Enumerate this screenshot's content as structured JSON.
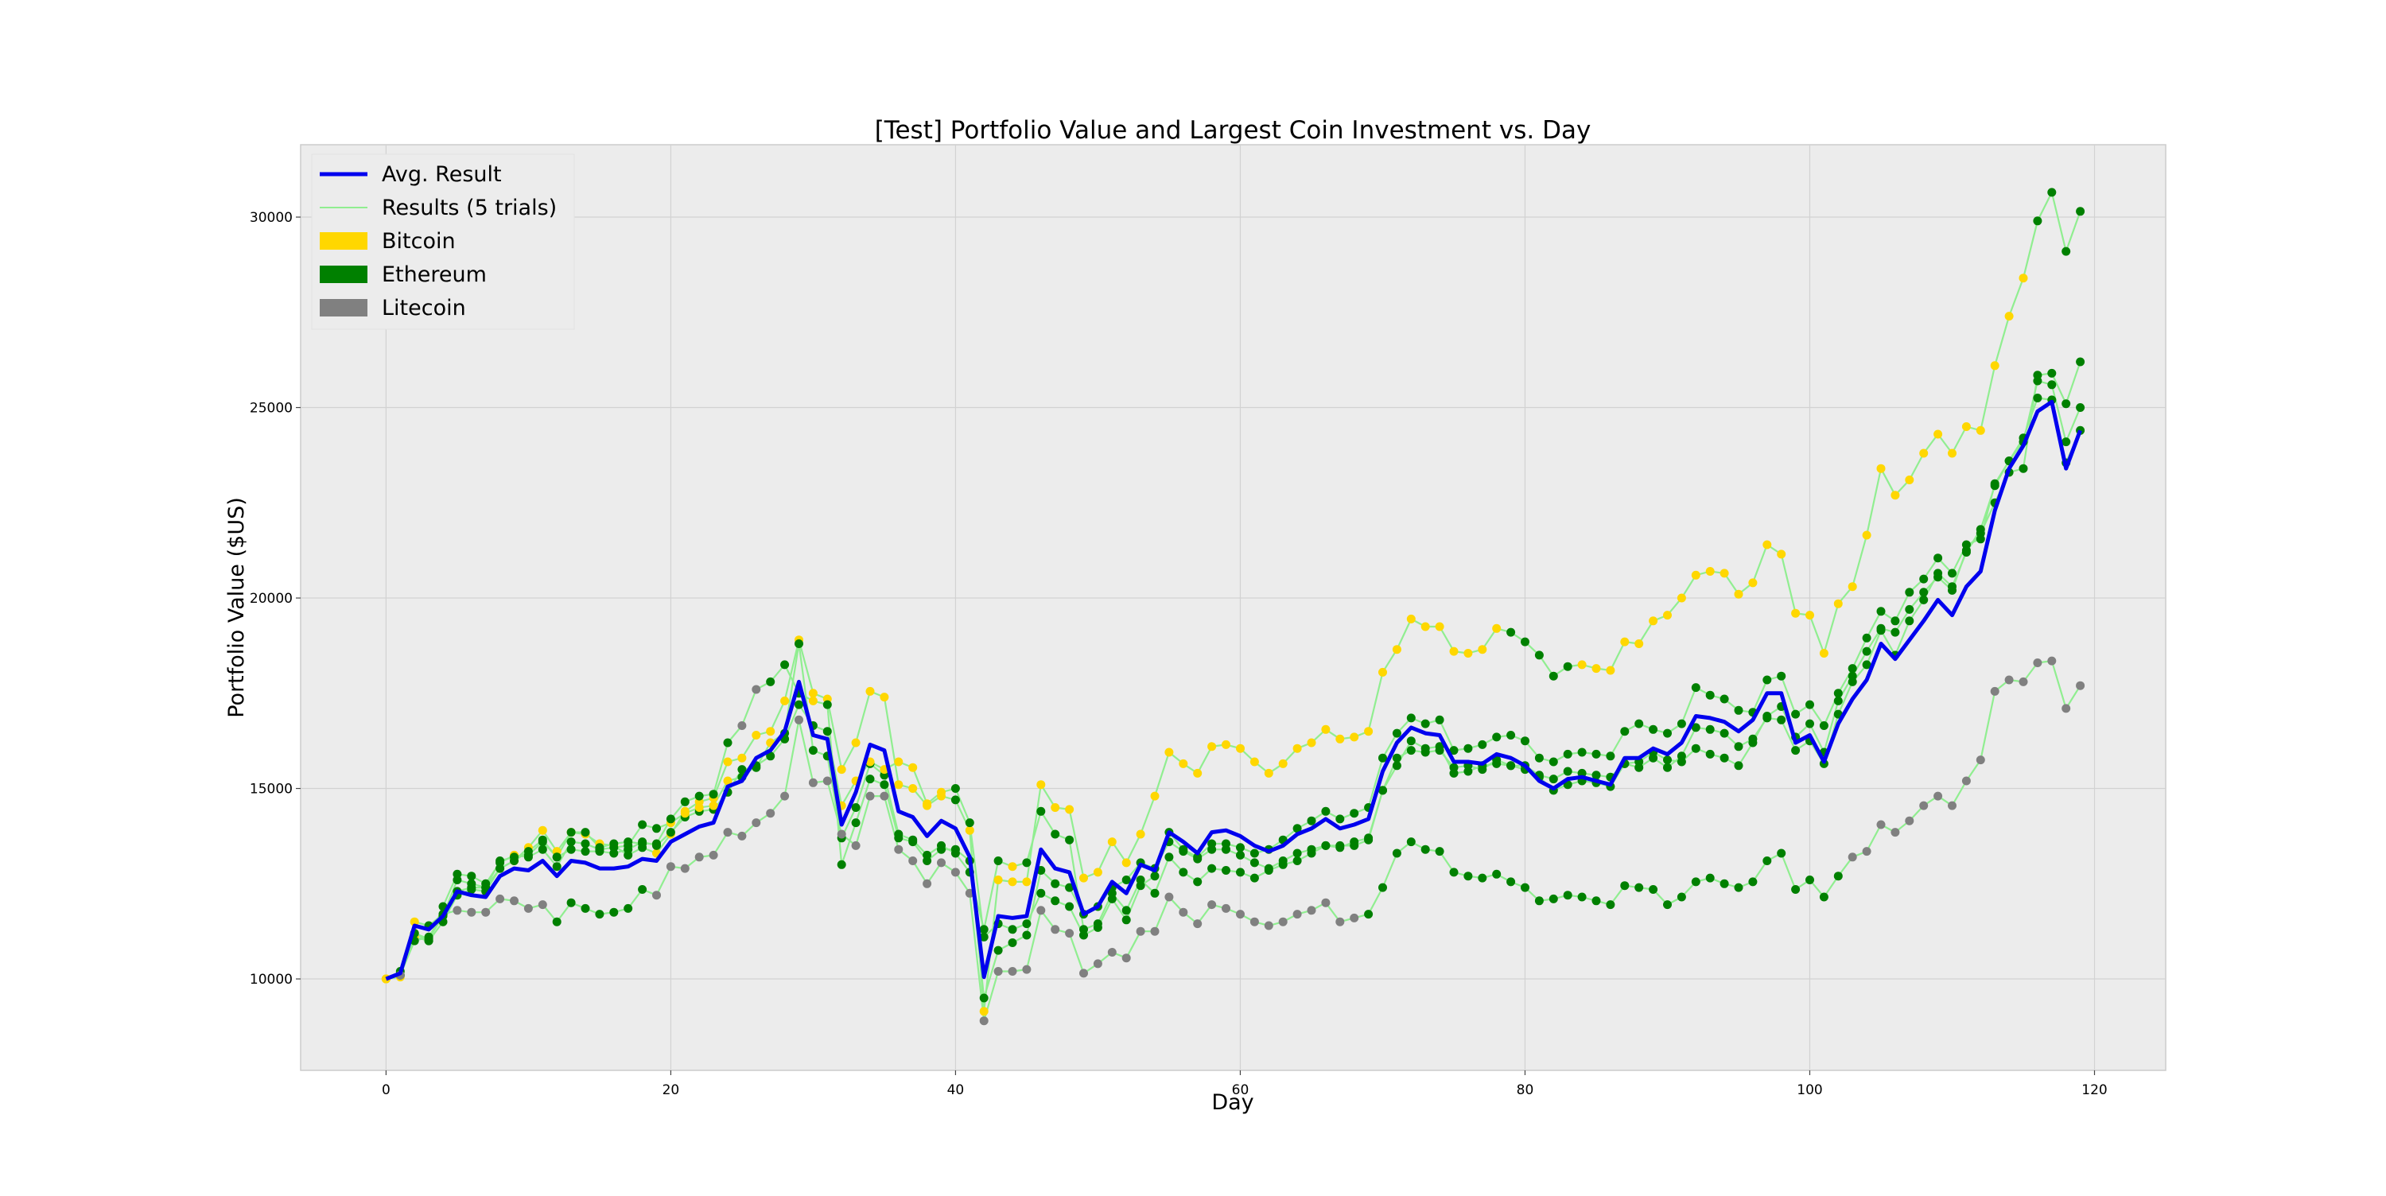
{
  "chart_data": {
    "type": "line",
    "title": "[Test] Portfolio Value and Largest Coin Investment vs. Day",
    "xlabel": "Day",
    "ylabel": "Portfolio Value ($US)",
    "xlim": [
      -6,
      125
    ],
    "ylim": [
      7600,
      31900
    ],
    "xticks": [
      0,
      20,
      40,
      60,
      80,
      100,
      120
    ],
    "yticks": [
      10000,
      15000,
      20000,
      25000,
      30000
    ],
    "grid": true,
    "legend_position": "top-left",
    "legend": [
      {
        "label": "Avg. Result",
        "kind": "line",
        "color": "#0000ee",
        "width": 5
      },
      {
        "label": "Results (5 trials)",
        "kind": "line",
        "color": "#90ee90",
        "width": 2
      },
      {
        "label": "Bitcoin",
        "kind": "patch",
        "color": "#ffd700"
      },
      {
        "label": "Ethereum",
        "kind": "patch",
        "color": "#008000"
      },
      {
        "label": "Litecoin",
        "kind": "patch",
        "color": "#808080"
      }
    ],
    "coin_colors": {
      "B": "#ffd700",
      "E": "#008000",
      "L": "#808080"
    },
    "avg_series": {
      "name": "Avg. Result",
      "color": "#0000ee",
      "x_start": 0,
      "values": [
        10000,
        10150,
        11400,
        11300,
        11650,
        12300,
        12200,
        12150,
        12700,
        12900,
        12850,
        13100,
        12700,
        13100,
        13050,
        12900,
        12900,
        12950,
        13150,
        13100,
        13600,
        13800,
        14000,
        14100,
        15050,
        15200,
        15800,
        16000,
        16500,
        17800,
        16400,
        16300,
        14050,
        14900,
        16150,
        16000,
        14400,
        14250,
        13750,
        14150,
        13950,
        13200,
        10050,
        11650,
        11600,
        11650,
        13400,
        12900,
        12800,
        11700,
        11900,
        12550,
        12250,
        13000,
        12850,
        13850,
        13600,
        13300,
        13850,
        13900,
        13750,
        13500,
        13350,
        13500,
        13800,
        13950,
        14200,
        13950,
        14050,
        14200,
        15450,
        16200,
        16600,
        16450,
        16400,
        15700,
        15700,
        15650,
        15900,
        15800,
        15600,
        15200,
        15000,
        15250,
        15300,
        15200,
        15100,
        15800,
        15800,
        16050,
        15900,
        16200,
        16900,
        16850,
        16750,
        16500,
        16800,
        17500,
        17500,
        16200,
        16400,
        15700,
        16700,
        17350,
        17850,
        18800,
        18400,
        18900,
        19400,
        19950,
        19550,
        20300,
        20700,
        22300,
        23400,
        24000,
        24900,
        25150,
        23400,
        24400
      ]
    },
    "trials": [
      {
        "name": "trial-1",
        "x_start": 0,
        "values": [
          10000,
          10050,
          11500,
          11400,
          11700,
          12300,
          12400,
          12400,
          12900,
          13100,
          13450,
          13900,
          13350,
          13850,
          13800,
          13550,
          13500,
          13250,
          13450,
          13300,
          13800,
          14400,
          14650,
          14750,
          15700,
          15800,
          16400,
          16500,
          17300,
          18900,
          17500,
          17350,
          15500,
          16200,
          17550,
          17400,
          15100,
          15000,
          14550,
          14800,
          14700,
          13900,
          9150,
          12600,
          12550,
          12550,
          15100,
          14500,
          14450,
          12650,
          12800,
          13600,
          13050,
          13800,
          14800,
          15950,
          15650,
          15400,
          16100,
          16150,
          16050,
          15700,
          15400,
          15650,
          16050,
          16200,
          16550,
          16300,
          16350,
          16500,
          18050,
          18650,
          19450,
          19250,
          19250,
          18600,
          18550,
          18650,
          19200,
          19100,
          18850,
          18500,
          17950,
          18200,
          18250,
          18150,
          18100,
          18850,
          18800,
          19400,
          19550,
          20000,
          20600,
          20700,
          20650,
          20100,
          20400,
          21400,
          21150,
          19600,
          19550,
          18550,
          19850,
          20300,
          21650,
          23400,
          22700,
          23100,
          23800,
          24300,
          23800,
          24500,
          24400,
          26100,
          27400,
          28400,
          29900,
          30650,
          29100,
          30150
        ],
        "coins": "BBBEEEEEEBBBBBBBBEEBBBBBBBBBBBBBBBBBBBBBEBBBBBBBBBBBBBBBBBBBBBBBBBBBBBBBBBBBBBBEEEEEBBBBBBBBBBBBBBBBBBBBBBBBBBBBBBBB"
      },
      {
        "name": "trial-2",
        "x_start": 0,
        "values": [
          10000,
          10100,
          11200,
          11000,
          11500,
          12200,
          12350,
          12300,
          12900,
          13100,
          13350,
          13650,
          13200,
          13400,
          13350,
          13350,
          13300,
          13400,
          13600,
          13500,
          13850,
          14250,
          14400,
          14450,
          14900,
          15500,
          15550,
          16200,
          16450,
          18800,
          16000,
          15850,
          13700,
          14500,
          15650,
          15350,
          13800,
          13650,
          13250,
          13500,
          13300,
          12800,
          11300,
          13100,
          12950,
          13050,
          14400,
          13800,
          13650,
          11300,
          11450,
          12250,
          11800,
          12600,
          12250,
          13200,
          12800,
          12550,
          12900,
          12850,
          12800,
          12650,
          12850,
          13000,
          13100,
          13300,
          13500,
          13450,
          13600,
          13700,
          14950,
          15600,
          16250,
          16050,
          16100,
          15400,
          15450,
          15600,
          15650,
          15600,
          15500,
          15300,
          14950,
          15100,
          15200,
          15150,
          15050,
          15650,
          15700,
          15950,
          15750,
          15700,
          16050,
          15900,
          15800,
          15600,
          16200,
          16900,
          17150,
          16350,
          16700,
          15950,
          17300,
          17950,
          18600,
          19200,
          19100,
          19700,
          20150,
          20550,
          20200,
          21250,
          21700,
          22500,
          23300,
          23400,
          25850,
          25900,
          25100,
          26200
        ],
        "coins": "BEBEEEEEEEEEEEEEEEEEEEEEEEEBEEEEEEEEEEEEEEEEBEEEEEEEEEEEEEEEEEEEEEEEEEEEEEEEEEEEEEEEEEEEEEEEEEEEEEEEEEEEEEEEEEEEEEEEEE"
      },
      {
        "name": "trial-3",
        "x_start": 0,
        "values": [
          10000,
          10100,
          11100,
          11000,
          11900,
          12750,
          12700,
          12500,
          13050,
          13250,
          13200,
          13400,
          12950,
          13600,
          13550,
          13400,
          13450,
          13500,
          14050,
          13950,
          14100,
          14350,
          14500,
          14550,
          15200,
          15300,
          15600,
          15850,
          16300,
          17200,
          16650,
          16500,
          14550,
          15200,
          15700,
          15500,
          15700,
          15550,
          14600,
          14900,
          15000,
          14100,
          11100,
          11450,
          11300,
          11450,
          12250,
          12050,
          11900,
          11150,
          11350,
          12100,
          11550,
          12450,
          12700,
          13850,
          13400,
          13200,
          13550,
          13550,
          13450,
          13300,
          13400,
          13650,
          13950,
          14150,
          14400,
          14200,
          14350,
          14500,
          15800,
          16450,
          16850,
          16700,
          16800,
          16000,
          16050,
          16150,
          16350,
          16400,
          16250,
          15800,
          15700,
          15900,
          15950,
          15900,
          15850,
          16500,
          16700,
          16550,
          16450,
          16700,
          17650,
          17450,
          17350,
          17050,
          17000,
          17850,
          17950,
          16950,
          17200,
          16650,
          17500,
          18150,
          18950,
          19650,
          19400,
          20150,
          20500,
          21050,
          20650,
          21400,
          21550,
          23000,
          23600,
          24100,
          25700,
          25600,
          24100,
          25000
        ],
        "coins": "BEBEEEEEEBEEEEEEEEEEBBBBBEEEEEEEBBBBBBBBEEEEEEEEEEEEEEEEEEEEEEEEEEEEEEEEEEEEEEEEEEEEEEEEEEEEEEEEEEEEEEEEEEEEEEEEEEEEEEE"
      },
      {
        "name": "trial-4",
        "x_start": 0,
        "values": [
          10000,
          10200,
          11200,
          11050,
          11650,
          12600,
          12500,
          12400,
          13100,
          13200,
          13250,
          13600,
          13200,
          13850,
          13850,
          13450,
          13550,
          13600,
          13550,
          13550,
          14200,
          14650,
          14800,
          14850,
          16200,
          16650,
          17600,
          17800,
          18250,
          17500,
          17300,
          17200,
          13000,
          14100,
          15250,
          15100,
          13700,
          13600,
          13100,
          13400,
          13400,
          13100,
          9500,
          10750,
          10950,
          11150,
          12850,
          12500,
          12400,
          11700,
          11900,
          12400,
          12600,
          13050,
          12900,
          13600,
          13350,
          13150,
          13400,
          13400,
          13250,
          13050,
          12900,
          13100,
          13300,
          13400,
          13500,
          13500,
          13500,
          13650,
          14950,
          15800,
          16000,
          15950,
          16000,
          15550,
          15600,
          15500,
          15750,
          15600,
          15600,
          15350,
          15250,
          15450,
          15400,
          15350,
          15300,
          15650,
          15550,
          15800,
          15550,
          15850,
          16600,
          16550,
          16450,
          16100,
          16300,
          16850,
          16800,
          16000,
          16250,
          15650,
          16950,
          17800,
          18250,
          19150,
          18500,
          19400,
          19950,
          20650,
          20300,
          21200,
          21800,
          22950,
          23600,
          24200,
          25250,
          25200,
          23550,
          24400
        ],
        "coins": "BEEEEEEEEEEEEEEEEEEEEEEEELLEEEBEEEEEEEEEEEEEEEEEEEEEEEEEEEEEEEEEEEEEEEEEEEEEEEEEEEEEEEEEEEEEEEEEEEEEEEEEEEEEEEEEEEEEEEEE"
      },
      {
        "name": "trial-5",
        "x_start": 0,
        "values": [
          10000,
          10100,
          11000,
          11100,
          11700,
          11800,
          11750,
          11750,
          12100,
          12050,
          11850,
          11950,
          11500,
          12000,
          11850,
          11700,
          11750,
          11850,
          12350,
          12200,
          12950,
          12900,
          13200,
          13250,
          13850,
          13750,
          14100,
          14350,
          14800,
          16800,
          15150,
          15200,
          13800,
          13500,
          14800,
          14800,
          13400,
          13100,
          12500,
          13050,
          12800,
          12250,
          8900,
          10200,
          10200,
          10250,
          11800,
          11300,
          11200,
          10150,
          10400,
          10700,
          10550,
          11250,
          11250,
          12150,
          11750,
          11450,
          11950,
          11850,
          11700,
          11500,
          11400,
          11500,
          11700,
          11800,
          12000,
          11500,
          11600,
          11700,
          12400,
          13300,
          13600,
          13400,
          13350,
          12800,
          12700,
          12650,
          12750,
          12550,
          12400,
          12050,
          12100,
          12200,
          12150,
          12050,
          11950,
          12450,
          12400,
          12350,
          11950,
          12150,
          12550,
          12650,
          12500,
          12400,
          12550,
          13100,
          13300,
          12350,
          12600,
          12150,
          12700,
          13200,
          13350,
          14050,
          13850,
          14150,
          14550,
          14800,
          14550,
          15200,
          15750,
          17550,
          17850,
          17800,
          18300,
          18350,
          17100,
          17700
        ],
        "coins": "BLEEELLLLLLLEEEEEEELLLLLLLLLLLLLLLLLLLLLLLLLLLLLLLLLLLLLLLLLLLLLLLLLLEEEEEEEEEEEEEEEEEEEEEEEEEEEEEEEEEELLLLLLLLLLLLLLLLL"
      }
    ]
  }
}
